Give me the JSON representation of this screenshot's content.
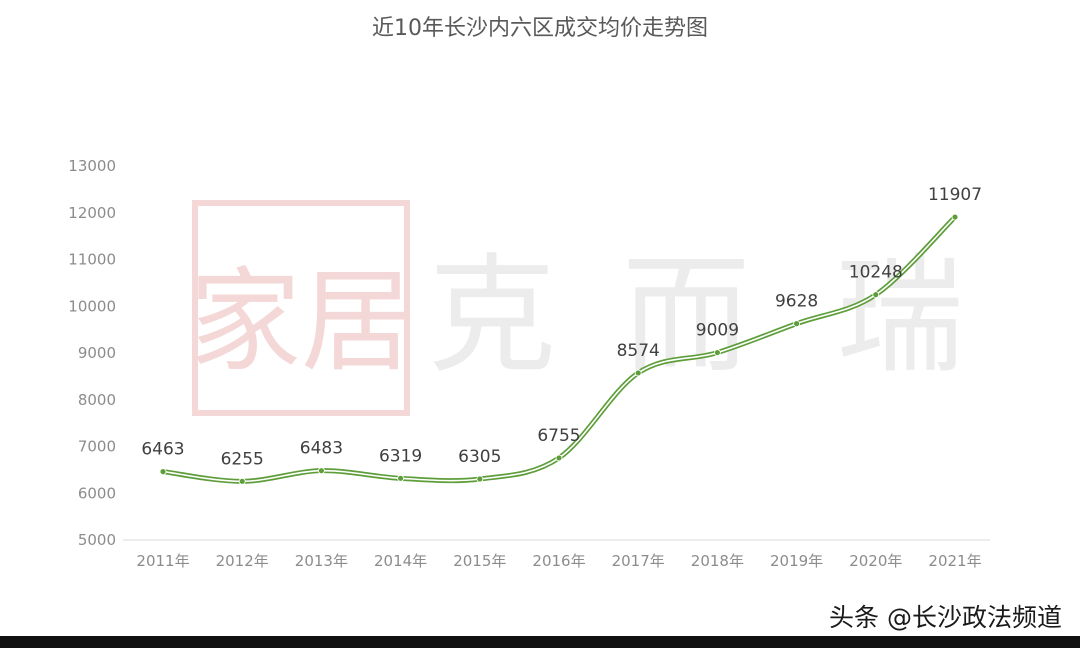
{
  "chart_data": {
    "type": "line",
    "title": "近10年长沙内六区成交均价走势图",
    "categories": [
      "2011年",
      "2012年",
      "2013年",
      "2014年",
      "2015年",
      "2016年",
      "2017年",
      "2018年",
      "2019年",
      "2020年",
      "2021年"
    ],
    "series": [
      {
        "name": "成交均价",
        "values": [
          6463,
          6255,
          6483,
          6319,
          6305,
          6755,
          8574,
          9009,
          9628,
          10248,
          11907
        ]
      }
    ],
    "yticks": [
      5000,
      6000,
      7000,
      8000,
      9000,
      10000,
      11000,
      12000,
      13000
    ],
    "ylim": [
      5000,
      13000
    ],
    "xlabel": "",
    "ylabel": "",
    "grid": false,
    "smooth": true,
    "line_color": "#5e9e3a"
  },
  "watermark": {
    "seal_chars": "家居",
    "text_chars": [
      "克",
      "而",
      "瑞"
    ],
    "color": "#f4d7d7"
  },
  "credit": "头条 @长沙政法频道"
}
